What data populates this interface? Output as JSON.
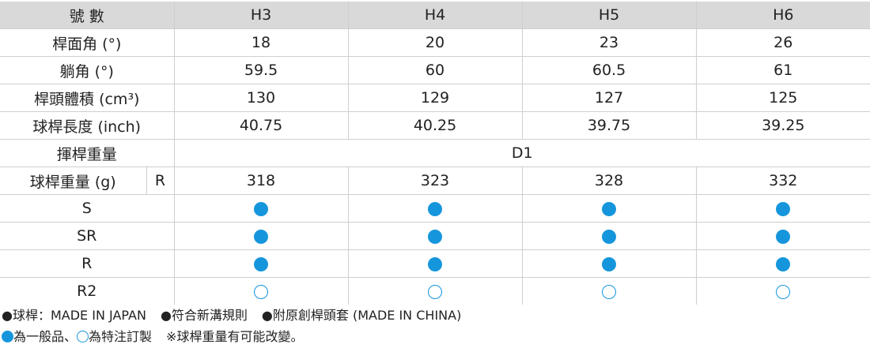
{
  "table": {
    "header": [
      "號 數",
      "H3",
      "H4",
      "H5",
      "H6"
    ],
    "rows": [
      [
        "桿面角 (°)",
        "18",
        "20",
        "23",
        "26"
      ],
      [
        "躺角 (°)",
        "59.5",
        "60",
        "60.5",
        "61"
      ],
      [
        "桿頭體積 (cm³)",
        "130",
        "129",
        "127",
        "125"
      ],
      [
        "球桿長度 (inch)",
        "40.75",
        "40.25",
        "39.75",
        "39.25"
      ]
    ],
    "swing_weight": [
      "揮桿重量",
      "D1"
    ],
    "weight": [
      "球桿重量 (g)",
      "R",
      "318",
      "323",
      "328",
      "332"
    ],
    "shafts": [
      "S",
      "SR",
      "R",
      "R2"
    ]
  },
  "notes": {
    "line1": [
      "●球桿：MADE IN JAPAN",
      "●符合新溝規則",
      "●附原創桿頭套 (MADE IN CHINA)"
    ],
    "line2": [
      "為一般品、",
      "為特注訂製",
      "※球桿重量有可能改變。"
    ]
  }
}
